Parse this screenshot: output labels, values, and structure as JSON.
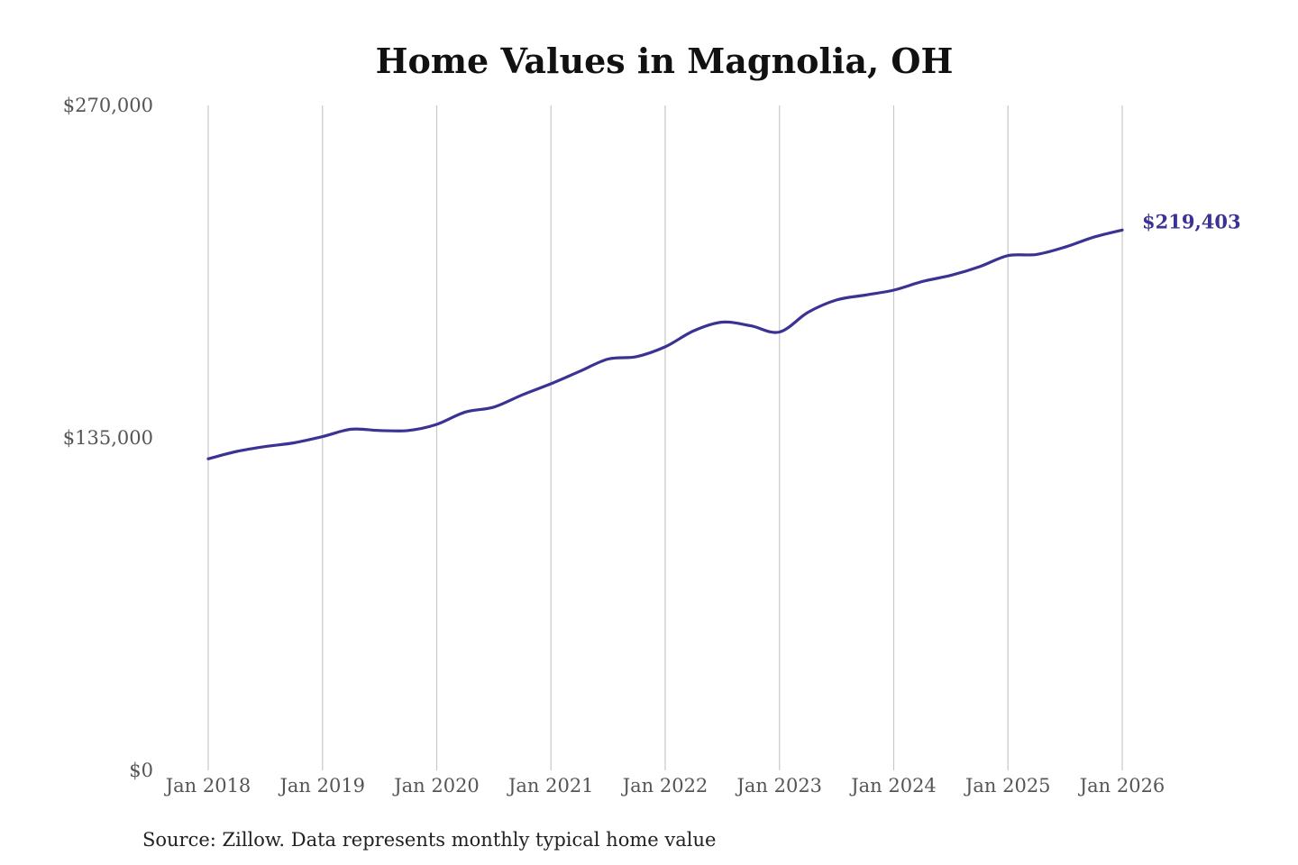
{
  "chart_data": {
    "type": "line",
    "title": "Home Values in Magnolia, OH",
    "source_note": "Source: Zillow. Data represents monthly typical home value",
    "ylim": [
      0,
      270000
    ],
    "y_ticks": [
      {
        "value": 0,
        "label": "$0"
      },
      {
        "value": 135000,
        "label": "$135,000"
      },
      {
        "value": 270000,
        "label": "$270,000"
      }
    ],
    "x_ticks": [
      {
        "value": 2018,
        "label": "Jan 2018"
      },
      {
        "value": 2019,
        "label": "Jan 2019"
      },
      {
        "value": 2020,
        "label": "Jan 2020"
      },
      {
        "value": 2021,
        "label": "Jan 2021"
      },
      {
        "value": 2022,
        "label": "Jan 2022"
      },
      {
        "value": 2023,
        "label": "Jan 2023"
      },
      {
        "value": 2024,
        "label": "Jan 2024"
      },
      {
        "value": 2025,
        "label": "Jan 2025"
      },
      {
        "value": 2026,
        "label": "Jan 2026"
      }
    ],
    "xlim": [
      2018,
      2026
    ],
    "grid": "vertical",
    "line_color": "#3b3393",
    "end_label": "$219,403",
    "series": [
      {
        "x": [
          2018.0,
          2018.25,
          2018.5,
          2018.75,
          2019.0,
          2019.25,
          2019.5,
          2019.75,
          2020.0,
          2020.25,
          2020.5,
          2020.75,
          2021.0,
          2021.25,
          2021.5,
          2021.75,
          2022.0,
          2022.25,
          2022.5,
          2022.75,
          2023.0,
          2023.25,
          2023.5,
          2023.75,
          2024.0,
          2024.25,
          2024.5,
          2024.75,
          2025.0,
          2025.25,
          2025.5,
          2025.75,
          2026.0
        ],
        "y": [
          126500,
          129500,
          131500,
          133000,
          135500,
          138500,
          138000,
          138000,
          140500,
          145500,
          147500,
          152500,
          157000,
          162000,
          167000,
          168000,
          172000,
          178500,
          182000,
          180500,
          178000,
          186000,
          191000,
          193000,
          195000,
          198500,
          201000,
          204500,
          209000,
          209500,
          212500,
          216500,
          219403
        ]
      }
    ]
  }
}
